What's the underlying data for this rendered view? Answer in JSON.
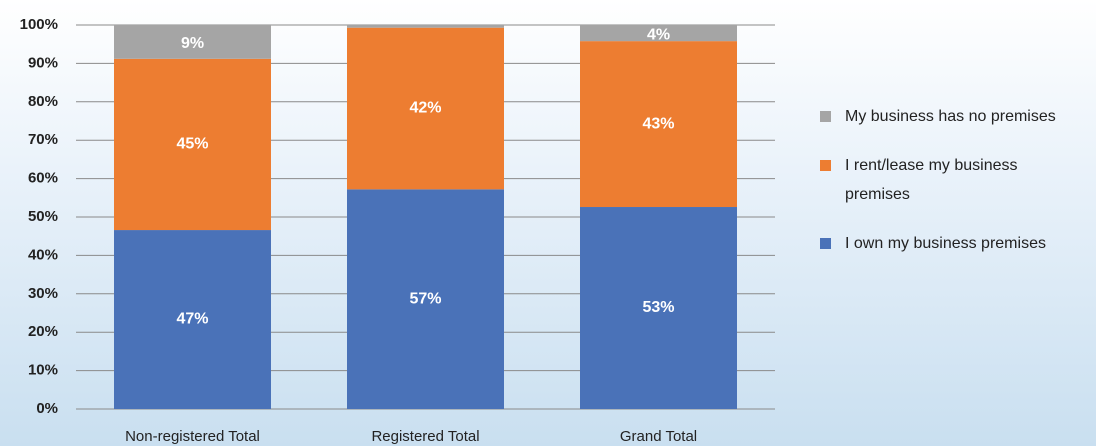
{
  "chart_data": {
    "type": "stacked_bar",
    "categories": [
      "Non-registered Total",
      "Registered Total",
      "Grand Total"
    ],
    "series": [
      {
        "name": "I own my business premises",
        "color": "#4a72b8",
        "values": [
          46.6,
          57.2,
          52.6
        ],
        "value_labels": [
          "47%",
          "57%",
          "53%"
        ]
      },
      {
        "name": "I rent/lease my business premises",
        "color": "#ed7d31",
        "values": [
          44.6,
          42.1,
          43.2
        ],
        "value_labels": [
          "45%",
          "42%",
          "43%"
        ]
      },
      {
        "name": "My business has no premises",
        "color": "#a5a5a5",
        "values": [
          8.8,
          0.7,
          4.2
        ],
        "value_labels": [
          "9%",
          null,
          "4%"
        ]
      }
    ],
    "ylim": [
      0,
      100
    ],
    "yticks": [
      {
        "value": 0,
        "label": "0%"
      },
      {
        "value": 10,
        "label": "10%"
      },
      {
        "value": 20,
        "label": "20%"
      },
      {
        "value": 30,
        "label": "30%"
      },
      {
        "value": 40,
        "label": "40%"
      },
      {
        "value": 50,
        "label": "50%"
      },
      {
        "value": 60,
        "label": "60%"
      },
      {
        "value": 70,
        "label": "70%"
      },
      {
        "value": 80,
        "label": "80%"
      },
      {
        "value": 90,
        "label": "90%"
      },
      {
        "value": 100,
        "label": "100%"
      }
    ],
    "grid": true
  }
}
